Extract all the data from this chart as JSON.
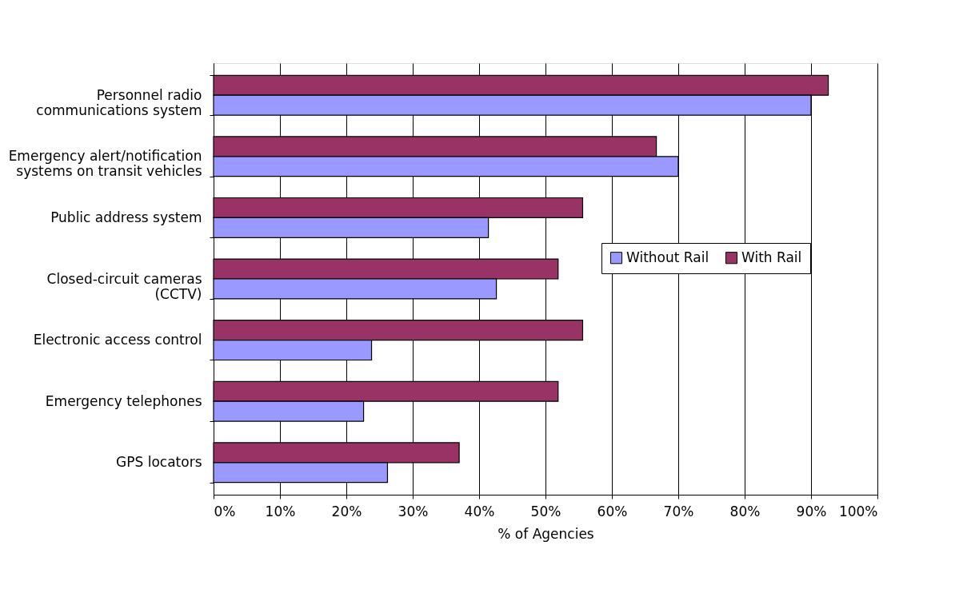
{
  "chart_data": {
    "type": "bar",
    "orientation": "horizontal",
    "xlabel": "% of Agencies",
    "categories": [
      "Personnel radio communications system",
      "Emergency alert/notification systems on transit vehicles",
      "Public address system",
      "Closed-circuit cameras (CCTV)",
      "Electronic access control",
      "Emergency telephones",
      "GPS locators"
    ],
    "series": [
      {
        "name": "With Rail",
        "color": "#993366",
        "values": [
          92.6,
          66.7,
          55.6,
          51.9,
          55.6,
          51.9,
          37.0
        ]
      },
      {
        "name": "Without Rail",
        "color": "#9999ff",
        "values": [
          90.0,
          70.0,
          41.4,
          42.6,
          23.8,
          22.6,
          26.2
        ]
      }
    ],
    "xlim": [
      0,
      100
    ],
    "xticks": [
      {
        "value": 0,
        "label": "0%"
      },
      {
        "value": 10,
        "label": "10%"
      },
      {
        "value": 20,
        "label": "20%"
      },
      {
        "value": 30,
        "label": "30%"
      },
      {
        "value": 40,
        "label": "40%"
      },
      {
        "value": 50,
        "label": "50%"
      },
      {
        "value": 60,
        "label": "60%"
      },
      {
        "value": 70,
        "label": "70%"
      },
      {
        "value": 80,
        "label": "80%"
      },
      {
        "value": 90,
        "label": "90%"
      },
      {
        "value": 100,
        "label": "100%"
      }
    ],
    "grid": "x",
    "legend": "right"
  }
}
